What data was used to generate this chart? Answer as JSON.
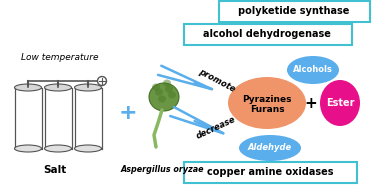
{
  "bg_color": "#ffffff",
  "box1_text": "polyketide synthase",
  "box2_text": "alcohol dehydrogenase",
  "box3_text": "copper amine oxidases",
  "box_edge_color": "#40c0d0",
  "box_text_color": "#000000",
  "ellipse_main_color": "#f0956a",
  "ellipse_alcohols_color": "#5aaeec",
  "ellipse_aldehyde_color": "#5aaeec",
  "ester_color": "#e8108a",
  "promote_arrow_color": "#5aaeec",
  "decrease_arrow_color": "#5aaeec",
  "low_temp_text": "Low temperature",
  "salt_text": "Salt",
  "aspergillus_text": "Aspergillus oryzae",
  "plus_color": "#5aaeec",
  "cyl_body_color": "#ffffff",
  "cyl_edge_color": "#555555",
  "bean_color": "#f5e600",
  "bean_edge_color": "#b8a000"
}
